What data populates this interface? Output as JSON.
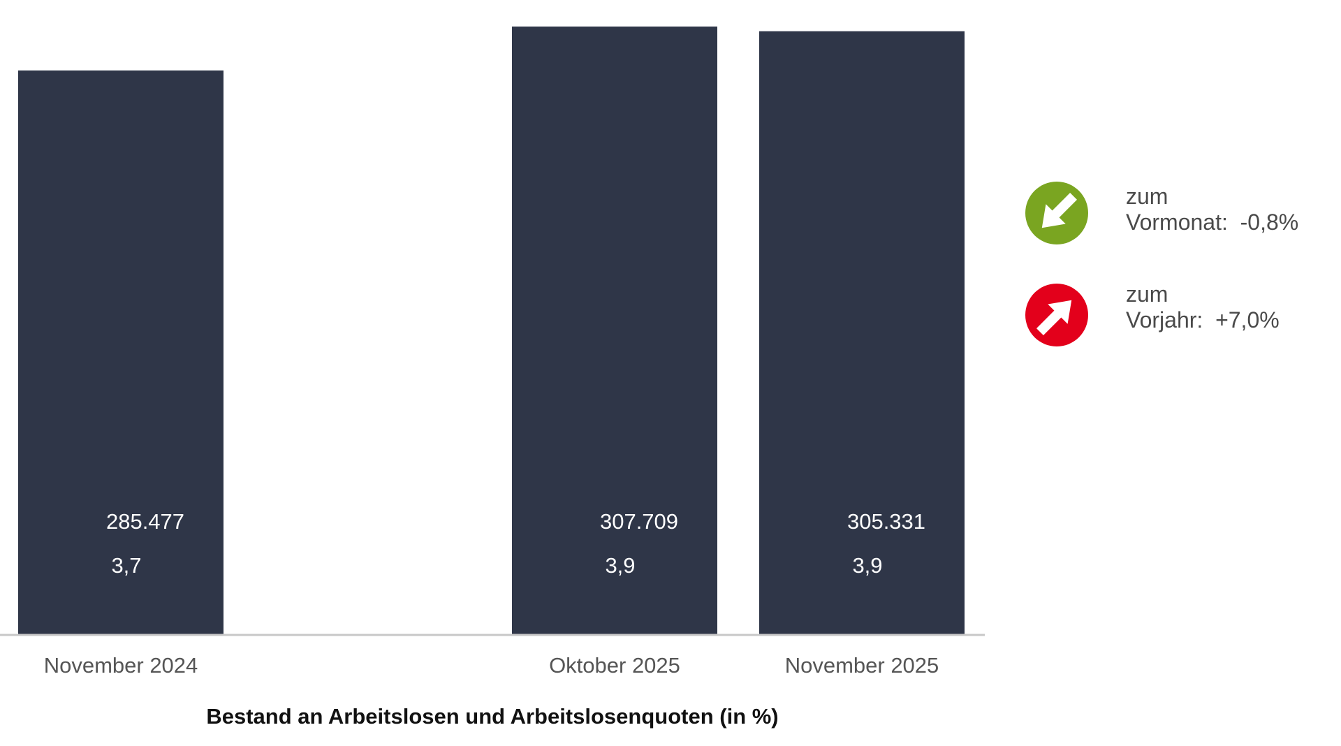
{
  "chart_data": {
    "type": "bar",
    "title": "Bestand an Arbeitslosen und Arbeitslosenquoten (in %)",
    "categories": [
      "November 2024",
      "Oktober 2025",
      "November 2025"
    ],
    "values": [
      285477,
      307709,
      305331
    ],
    "value_labels": [
      "285.477",
      "307.709",
      "305.331"
    ],
    "rates": [
      3.7,
      3.9,
      3.9
    ],
    "rate_labels": [
      "3,7",
      "3,9",
      "3,9"
    ],
    "ylim": [
      0,
      310000
    ],
    "grid": false,
    "bar_color": "#2f3648"
  },
  "legend": {
    "items": [
      {
        "icon": "arrow-down-right-icon",
        "color": "#7aa521",
        "line1": "zum",
        "line2": "Vormonat:",
        "value": "-0,8%"
      },
      {
        "icon": "arrow-up-right-icon",
        "color": "#e3001b",
        "line1": "zum",
        "line2": "Vorjahr:",
        "value": "+7,0%"
      }
    ]
  }
}
